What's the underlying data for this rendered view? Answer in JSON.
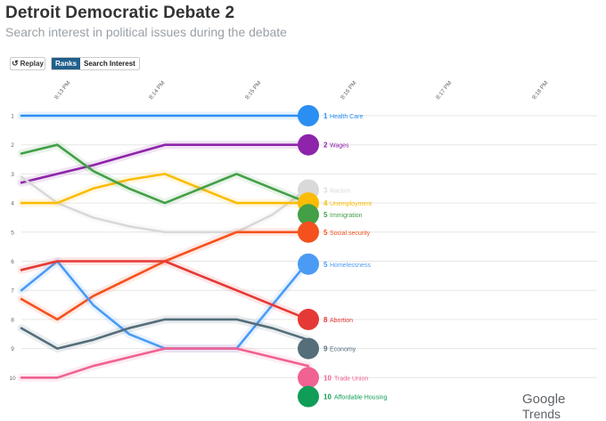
{
  "header": {
    "title": "Detroit Democratic Debate 2",
    "subtitle": "Search interest in political issues during the debate"
  },
  "controls": {
    "replay_label": "Replay",
    "ranks_label": "Ranks",
    "search_interest_label": "Search Interest",
    "active_view": "Ranks"
  },
  "brand": {
    "google": "Google",
    "trends": "Trends"
  },
  "colors": {
    "Health Care": "#2a8ef2",
    "Wages": "#8e24aa",
    "Racism": "#d9d9d9",
    "Unemployment": "#fbbc05",
    "Immigration": "#43a047",
    "Social security": "#f4511e",
    "Homelessness": "#4b9bf5",
    "Abortion": "#e53935",
    "Economy": "#546e7a",
    "Trade Union": "#f06292",
    "Affordable Housing": "#0f9d58"
  },
  "chart_data": {
    "type": "line",
    "subtype": "rank bump chart",
    "title": "Detroit Democratic Debate 2",
    "subtitle": "Search interest in political issues during the debate",
    "x": [
      "8:13 PM",
      "8:14 PM",
      "8:15 PM",
      "8:16 PM",
      "8:17 PM",
      "8:18 PM"
    ],
    "y_ticks": [
      1,
      2,
      3,
      4,
      5,
      6,
      7,
      8,
      9,
      10
    ],
    "ylim": [
      1,
      10
    ],
    "y_inverted": true,
    "grid": true,
    "series": [
      {
        "name": "Health Care",
        "rank": 1,
        "points": [
          [
            8.12,
            1
          ],
          [
            8.125,
            1
          ],
          [
            8.13,
            1
          ],
          [
            8.135,
            1
          ],
          [
            8.14,
            1
          ],
          [
            8.145,
            1
          ],
          [
            8.15,
            1
          ],
          [
            8.155,
            1
          ],
          [
            8.16,
            1
          ]
        ]
      },
      {
        "name": "Wages",
        "rank": 2,
        "points": [
          [
            8.12,
            3.3
          ],
          [
            8.125,
            3
          ],
          [
            8.13,
            2.7
          ],
          [
            8.135,
            2.35
          ],
          [
            8.14,
            2
          ],
          [
            8.145,
            2
          ],
          [
            8.15,
            2
          ],
          [
            8.155,
            2
          ],
          [
            8.16,
            2
          ]
        ]
      },
      {
        "name": "Racism",
        "rank": 3,
        "points": [
          [
            8.12,
            3.1
          ],
          [
            8.125,
            4
          ],
          [
            8.13,
            4.5
          ],
          [
            8.135,
            4.8
          ],
          [
            8.14,
            5
          ],
          [
            8.145,
            5
          ],
          [
            8.15,
            5
          ],
          [
            8.155,
            4.4
          ],
          [
            8.16,
            3.5
          ]
        ]
      },
      {
        "name": "Unemployment",
        "rank": 4,
        "points": [
          [
            8.12,
            4
          ],
          [
            8.125,
            4
          ],
          [
            8.13,
            3.5
          ],
          [
            8.135,
            3.2
          ],
          [
            8.14,
            3
          ],
          [
            8.145,
            3.5
          ],
          [
            8.15,
            4
          ],
          [
            8.155,
            4
          ],
          [
            8.16,
            4
          ]
        ]
      },
      {
        "name": "Immigration",
        "rank": 5,
        "points": [
          [
            8.12,
            2.3
          ],
          [
            8.125,
            2
          ],
          [
            8.13,
            2.9
          ],
          [
            8.135,
            3.5
          ],
          [
            8.14,
            4
          ],
          [
            8.145,
            3.5
          ],
          [
            8.15,
            3
          ],
          [
            8.155,
            3.5
          ],
          [
            8.16,
            4
          ]
        ]
      },
      {
        "name": "Social security",
        "rank": 5,
        "points": [
          [
            8.12,
            7.3
          ],
          [
            8.125,
            8
          ],
          [
            8.13,
            7.2
          ],
          [
            8.135,
            6.6
          ],
          [
            8.14,
            6
          ],
          [
            8.145,
            5.5
          ],
          [
            8.15,
            5
          ],
          [
            8.155,
            5
          ],
          [
            8.16,
            5
          ]
        ]
      },
      {
        "name": "Homelessness",
        "rank": 5,
        "points": [
          [
            8.12,
            7
          ],
          [
            8.125,
            6
          ],
          [
            8.13,
            7.5
          ],
          [
            8.135,
            8.5
          ],
          [
            8.14,
            9
          ],
          [
            8.145,
            9
          ],
          [
            8.15,
            9
          ],
          [
            8.155,
            7.5
          ],
          [
            8.16,
            6
          ]
        ]
      },
      {
        "name": "Abortion",
        "rank": 8,
        "points": [
          [
            8.12,
            6.3
          ],
          [
            8.125,
            6
          ],
          [
            8.13,
            6
          ],
          [
            8.135,
            6
          ],
          [
            8.14,
            6
          ],
          [
            8.145,
            6.5
          ],
          [
            8.15,
            7
          ],
          [
            8.155,
            7.5
          ],
          [
            8.16,
            8
          ]
        ]
      },
      {
        "name": "Economy",
        "rank": 9,
        "points": [
          [
            8.12,
            8.3
          ],
          [
            8.125,
            9
          ],
          [
            8.13,
            8.7
          ],
          [
            8.135,
            8.3
          ],
          [
            8.14,
            8
          ],
          [
            8.145,
            8
          ],
          [
            8.15,
            8
          ],
          [
            8.155,
            8.3
          ],
          [
            8.16,
            8.7
          ]
        ]
      },
      {
        "name": "Trade Union",
        "rank": 10,
        "points": [
          [
            8.12,
            10
          ],
          [
            8.125,
            10
          ],
          [
            8.13,
            9.6
          ],
          [
            8.135,
            9.3
          ],
          [
            8.14,
            9
          ],
          [
            8.145,
            9
          ],
          [
            8.15,
            9
          ],
          [
            8.155,
            9.3
          ],
          [
            8.16,
            9.6
          ]
        ]
      },
      {
        "name": "Affordable Housing",
        "rank": 10,
        "points": []
      }
    ],
    "end_labels": [
      {
        "rank": "1",
        "name": "Health Care",
        "y": 1
      },
      {
        "rank": "2",
        "name": "Wages",
        "y": 2
      },
      {
        "rank": "3",
        "name": "Racism",
        "y": 3.55
      },
      {
        "rank": "4",
        "name": "Unemployment",
        "y": 4
      },
      {
        "rank": "5",
        "name": "Immigration",
        "y": 4.4
      },
      {
        "rank": "5",
        "name": "Social security",
        "y": 5
      },
      {
        "rank": "5",
        "name": "Homelessness",
        "y": 6.1
      },
      {
        "rank": "8",
        "name": "Abortion",
        "y": 8
      },
      {
        "rank": "9",
        "name": "Economy",
        "y": 9
      },
      {
        "rank": "10",
        "name": "Trade Union",
        "y": 10
      },
      {
        "rank": "10",
        "name": "Affordable Housing",
        "y": 10.65
      }
    ]
  }
}
